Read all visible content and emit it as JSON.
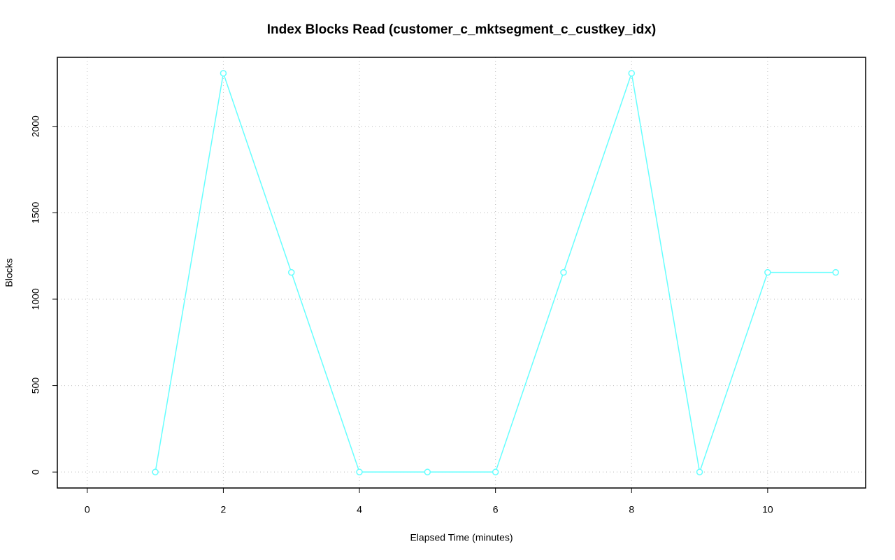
{
  "chart_data": {
    "type": "line",
    "title": "Index Blocks Read (customer_c_mktsegment_c_custkey_idx)",
    "x_label": "Elapsed Time (minutes)",
    "y_label": "Blocks",
    "x": [
      1,
      2,
      3,
      4,
      5,
      6,
      7,
      8,
      9,
      10,
      11
    ],
    "series": [
      {
        "color": "#66ffff",
        "values": [
          0,
          2307,
          1155,
          0,
          0,
          0,
          1155,
          2307,
          0,
          1155,
          1155
        ]
      }
    ],
    "xlim": [
      -0.44,
      11.44
    ],
    "xticks": [
      0,
      2,
      4,
      6,
      8,
      10
    ],
    "ylim": [
      -92.3,
      2399.3
    ],
    "yticks": [
      0,
      500,
      1000,
      1500,
      2000
    ],
    "grid": true
  }
}
